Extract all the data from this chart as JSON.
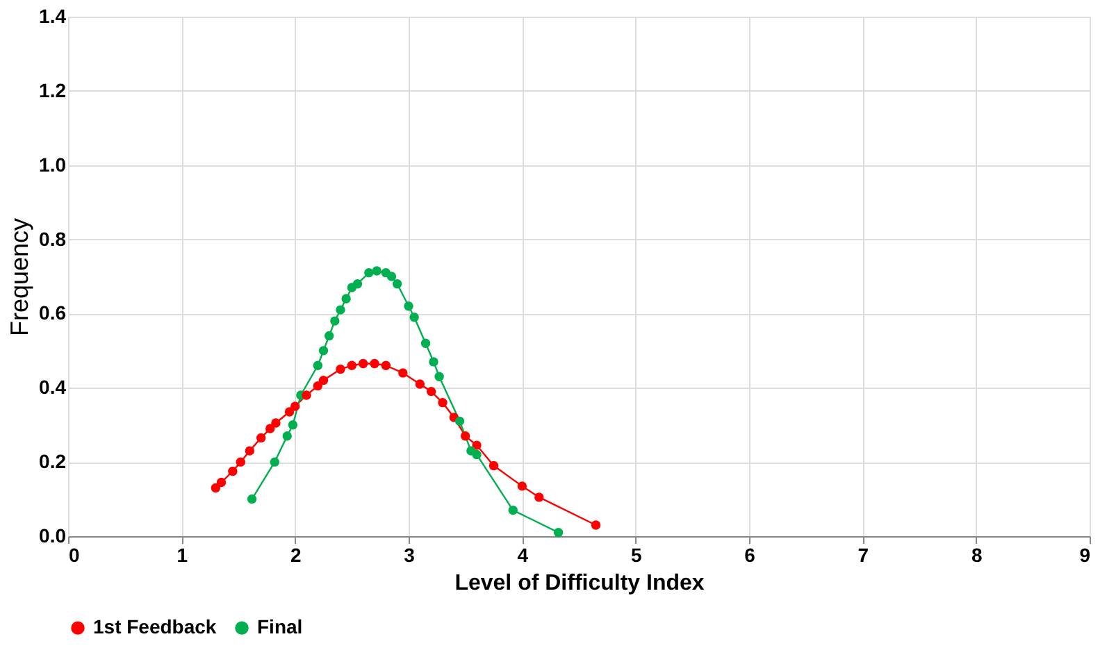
{
  "chart_data": {
    "type": "line",
    "xlabel": "Level of Difficulty Index",
    "ylabel": "Frequency",
    "xlim": [
      0,
      9
    ],
    "xticks": [
      0,
      1,
      2,
      3,
      4,
      5,
      6,
      7,
      8,
      9
    ],
    "ylim": [
      0,
      1.4
    ],
    "yticks": [
      {
        "value": 0,
        "label": "0.0"
      },
      0.2,
      0.4,
      0.6,
      0.8,
      {
        "value": 1,
        "label": "1.0"
      },
      1.2,
      1.4
    ],
    "grid": true,
    "legend": "bottom",
    "marker": "circle",
    "line_style": "solid",
    "series": [
      {
        "name": "1st Feedback",
        "color": "#ff0000",
        "x": [
          1.3,
          1.35,
          1.45,
          1.52,
          1.6,
          1.7,
          1.78,
          1.83,
          1.95,
          2.0,
          2.1,
          2.2,
          2.25,
          2.4,
          2.5,
          2.6,
          2.7,
          2.8,
          2.95,
          3.1,
          3.2,
          3.3,
          3.4,
          3.5,
          3.6,
          3.75,
          4.0,
          4.15,
          4.65
        ],
        "values": [
          0.13,
          0.145,
          0.175,
          0.2,
          0.23,
          0.265,
          0.29,
          0.305,
          0.335,
          0.35,
          0.38,
          0.405,
          0.42,
          0.45,
          0.46,
          0.465,
          0.465,
          0.46,
          0.44,
          0.41,
          0.39,
          0.36,
          0.32,
          0.27,
          0.245,
          0.19,
          0.135,
          0.105,
          0.03
        ]
      },
      {
        "name": "Final",
        "color": "#00b050",
        "x": [
          1.62,
          1.82,
          1.93,
          1.98,
          2.05,
          2.2,
          2.25,
          2.3,
          2.35,
          2.4,
          2.45,
          2.5,
          2.55,
          2.65,
          2.72,
          2.8,
          2.85,
          2.9,
          3.0,
          3.05,
          3.15,
          3.22,
          3.27,
          3.45,
          3.55,
          3.6,
          3.92,
          4.32
        ],
        "values": [
          0.1,
          0.2,
          0.27,
          0.3,
          0.38,
          0.46,
          0.5,
          0.54,
          0.58,
          0.61,
          0.64,
          0.67,
          0.68,
          0.71,
          0.715,
          0.71,
          0.7,
          0.68,
          0.62,
          0.59,
          0.52,
          0.47,
          0.43,
          0.31,
          0.23,
          0.22,
          0.07,
          0.01
        ]
      }
    ]
  }
}
